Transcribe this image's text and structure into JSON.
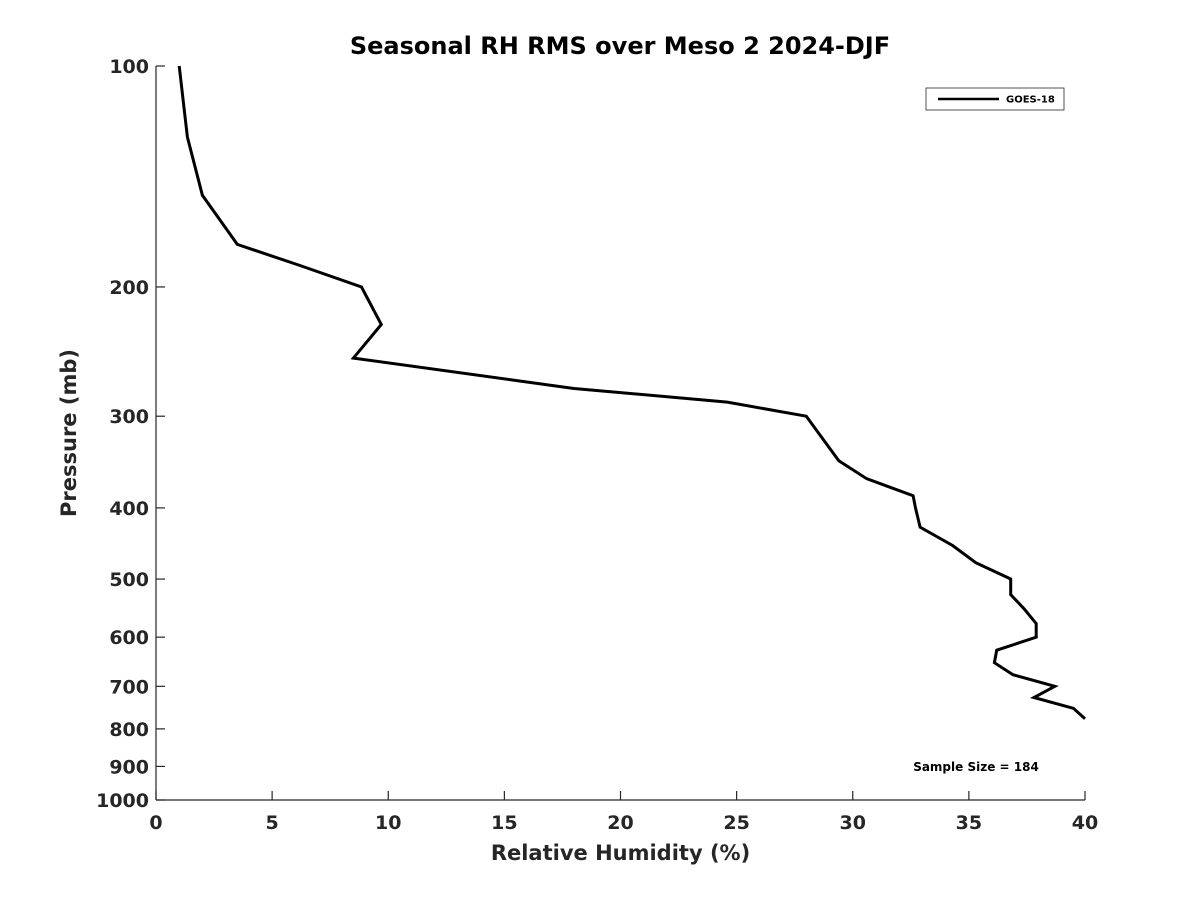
{
  "chart_data": {
    "type": "line",
    "title": "Seasonal RH RMS over Meso 2  2024-DJF",
    "xlabel": "Relative Humidity (%)",
    "ylabel": "Pressure (mb)",
    "xlim": [
      0,
      40
    ],
    "ylim": [
      100,
      1000
    ],
    "yscale": "log",
    "y_reversed": true,
    "xticks": [
      0,
      5,
      10,
      15,
      20,
      25,
      30,
      35,
      40
    ],
    "xtick_labels": [
      "0",
      "5",
      "10",
      "15",
      "20",
      "25",
      "30",
      "35",
      "40"
    ],
    "yticks": [
      100,
      200,
      300,
      400,
      500,
      600,
      700,
      800,
      900,
      1000
    ],
    "ytick_labels": [
      "100",
      "200",
      "300",
      "400",
      "500",
      "600",
      "700",
      "800",
      "900",
      "1000"
    ],
    "grid": false,
    "legend_position": "top-right",
    "annotation": "Sample Size = 184",
    "series": [
      {
        "name": "GOES-18",
        "color": "#000000",
        "points": [
          {
            "x": 1.0,
            "y": 100
          },
          {
            "x": 1.35,
            "y": 125
          },
          {
            "x": 2.0,
            "y": 150
          },
          {
            "x": 3.5,
            "y": 175
          },
          {
            "x": 6.2,
            "y": 187
          },
          {
            "x": 8.85,
            "y": 200
          },
          {
            "x": 9.7,
            "y": 225
          },
          {
            "x": 8.5,
            "y": 250
          },
          {
            "x": 18.0,
            "y": 275
          },
          {
            "x": 24.6,
            "y": 287
          },
          {
            "x": 28.0,
            "y": 300
          },
          {
            "x": 28.8,
            "y": 325
          },
          {
            "x": 29.4,
            "y": 345
          },
          {
            "x": 30.6,
            "y": 365
          },
          {
            "x": 32.6,
            "y": 385
          },
          {
            "x": 32.7,
            "y": 400
          },
          {
            "x": 32.9,
            "y": 425
          },
          {
            "x": 34.3,
            "y": 450
          },
          {
            "x": 35.3,
            "y": 475
          },
          {
            "x": 36.8,
            "y": 500
          },
          {
            "x": 36.8,
            "y": 525
          },
          {
            "x": 37.4,
            "y": 550
          },
          {
            "x": 37.9,
            "y": 575
          },
          {
            "x": 37.9,
            "y": 600
          },
          {
            "x": 36.2,
            "y": 625
          },
          {
            "x": 36.1,
            "y": 650
          },
          {
            "x": 36.9,
            "y": 675
          },
          {
            "x": 38.7,
            "y": 700
          },
          {
            "x": 37.8,
            "y": 725
          },
          {
            "x": 39.5,
            "y": 750
          },
          {
            "x": 40.0,
            "y": 775
          }
        ]
      }
    ]
  }
}
